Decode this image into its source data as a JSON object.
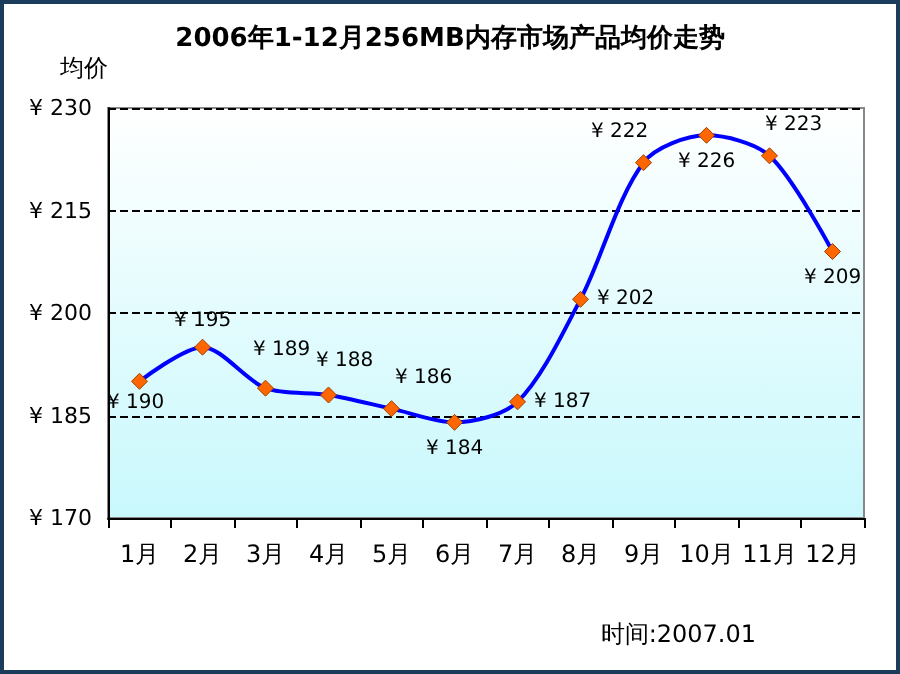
{
  "chart_data": {
    "type": "line",
    "title": "2006年1-12月256MB内存市场产品均价走势",
    "ylabel": "均价",
    "categories": [
      "1月",
      "2月",
      "3月",
      "4月",
      "5月",
      "6月",
      "7月",
      "8月",
      "9月",
      "10月",
      "11月",
      "12月"
    ],
    "series": [
      {
        "color": "#0000ff",
        "values": [
          190,
          195,
          189,
          188,
          186,
          184,
          187,
          202,
          222,
          226,
          223,
          209
        ],
        "value_labels": [
          "¥ 190",
          "¥ 195",
          "¥ 189",
          "¥ 188",
          "¥ 186",
          "¥ 184",
          "¥ 187",
          "¥ 202",
          "¥ 222",
          "¥ 226",
          "¥ 223",
          "¥ 209"
        ]
      }
    ],
    "ylim": [
      170,
      230
    ],
    "yticks": [
      {
        "value": 170,
        "label": "¥ 170"
      },
      {
        "value": 185,
        "label": "¥ 185"
      },
      {
        "value": 200,
        "label": "¥ 200"
      },
      {
        "value": 215,
        "label": "¥ 215"
      },
      {
        "value": 230,
        "label": "¥ 230"
      }
    ],
    "grid": "y",
    "marker": "diamond",
    "line_style": "solid",
    "annotations": [
      "时间:2007.01"
    ]
  }
}
